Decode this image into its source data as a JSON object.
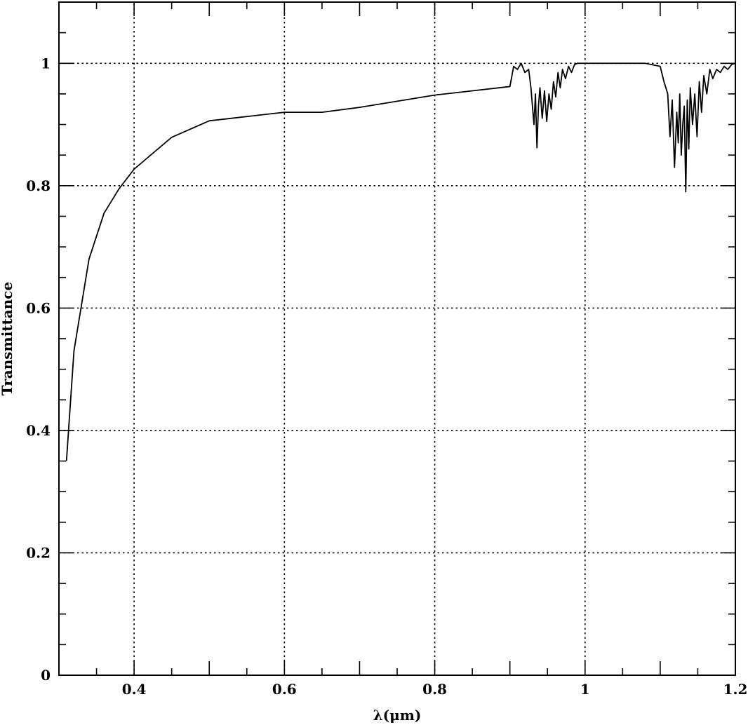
{
  "chart_data": {
    "type": "line",
    "xlabel": "λ(μm)",
    "ylabel": "Transmittance",
    "xlim": [
      0.3,
      1.2
    ],
    "ylim": [
      0,
      1.1
    ],
    "x_ticks": [
      0.4,
      0.6,
      0.8,
      1,
      1.2
    ],
    "x_tick_labels": [
      "0.4",
      "0.6",
      "0.8",
      "1",
      "1.2"
    ],
    "y_ticks": [
      0,
      0.2,
      0.4,
      0.6,
      0.8,
      1
    ],
    "y_tick_labels": [
      "0",
      "0.2",
      "0.4",
      "0.6",
      "0.8",
      "1"
    ],
    "grid": true,
    "legend": "none",
    "line_color": "#000000",
    "series": [
      {
        "x": [
          0.31,
          0.32,
          0.34,
          0.36,
          0.38,
          0.4,
          0.45,
          0.5,
          0.6,
          0.65,
          0.7,
          0.8,
          0.9,
          0.902,
          0.905,
          0.91,
          0.915,
          0.92,
          0.925,
          0.928,
          0.93,
          0.932,
          0.934,
          0.936,
          0.938,
          0.94,
          0.943,
          0.946,
          0.949,
          0.952,
          0.955,
          0.958,
          0.961,
          0.964,
          0.967,
          0.97,
          0.974,
          0.978,
          0.982,
          0.986,
          0.99,
          0.995,
          1.0,
          1.02,
          1.05,
          1.08,
          1.1,
          1.105,
          1.11,
          1.113,
          1.116,
          1.119,
          1.122,
          1.124,
          1.126,
          1.128,
          1.13,
          1.132,
          1.134,
          1.136,
          1.138,
          1.14,
          1.143,
          1.146,
          1.149,
          1.152,
          1.155,
          1.158,
          1.162,
          1.166,
          1.17,
          1.175,
          1.18,
          1.185,
          1.19,
          1.195,
          1.2
        ],
        "y": [
          0.35,
          0.53,
          0.68,
          0.755,
          0.795,
          0.827,
          0.879,
          0.906,
          0.92,
          0.92,
          0.928,
          0.948,
          0.962,
          0.975,
          0.995,
          0.99,
          1.0,
          0.985,
          0.99,
          0.96,
          0.93,
          0.9,
          0.95,
          0.862,
          0.93,
          0.96,
          0.91,
          0.955,
          0.905,
          0.95,
          0.925,
          0.97,
          0.945,
          0.985,
          0.96,
          0.99,
          0.975,
          0.995,
          0.985,
          0.998,
          1.0,
          1.0,
          1.0,
          1.0,
          1.0,
          1.0,
          0.995,
          0.97,
          0.95,
          0.88,
          0.94,
          0.83,
          0.92,
          0.87,
          0.95,
          0.85,
          0.9,
          0.93,
          0.79,
          0.94,
          0.86,
          0.96,
          0.9,
          0.95,
          0.88,
          0.97,
          0.92,
          0.98,
          0.95,
          0.99,
          0.975,
          0.99,
          0.985,
          0.995,
          0.99,
          0.998,
          1.0
        ]
      }
    ]
  }
}
